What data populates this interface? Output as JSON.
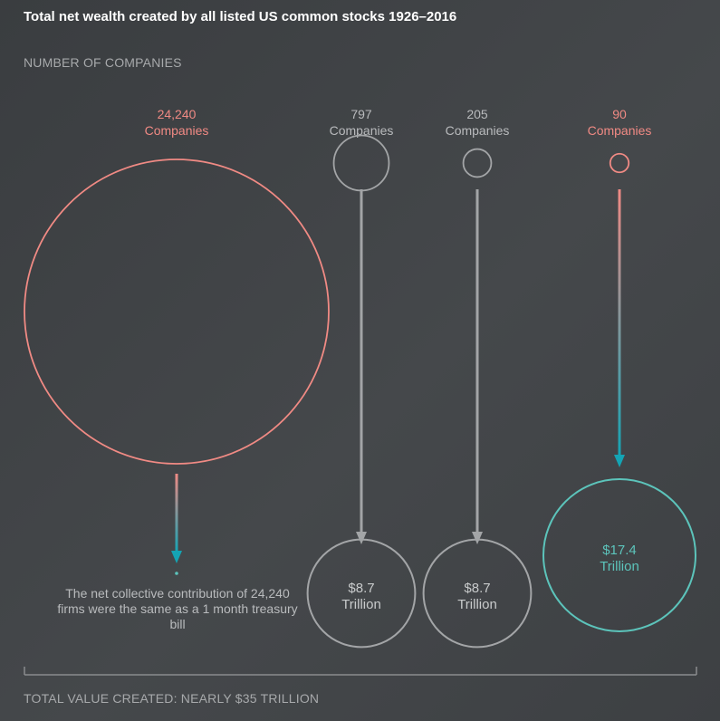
{
  "title": "Total net wealth created by all listed US common stocks 1926–2016",
  "subtitle": "NUMBER OF COMPANIES",
  "footer": "TOTAL VALUE CREATED: NEARLY $35 TRILLION",
  "note": "The net collective contribution of 24,240 firms were the same as a 1 month treasury bill",
  "colors": {
    "background": "#404346",
    "pink": "#f08a84",
    "gray": "#a3a5a7",
    "teal": "#5cc4bb",
    "arrow_teal": "#14a4b4",
    "text_gray": "#b9bbbd"
  },
  "chart_data": {
    "type": "bubble-flow",
    "title": "Total net wealth created by all listed US common stocks 1926–2016",
    "groups": [
      {
        "count": "24,240",
        "unit_label": "Companies",
        "value_trillion": 0,
        "value_label": "",
        "color": "#f08a84"
      },
      {
        "count": "797",
        "unit_label": "Companies",
        "value_trillion": 8.7,
        "value_label": "$8.7",
        "value_unit": "Trillion",
        "color": "#a3a5a7"
      },
      {
        "count": "205",
        "unit_label": "Companies",
        "value_trillion": 8.7,
        "value_label": "$8.7",
        "value_unit": "Trillion",
        "color": "#a3a5a7"
      },
      {
        "count": "90",
        "unit_label": "Companies",
        "value_trillion": 17.4,
        "value_label": "$17.4",
        "value_unit": "Trillion",
        "color": "#f08a84"
      }
    ],
    "total_label": "TOTAL VALUE CREATED: NEARLY $35 TRILLION"
  }
}
